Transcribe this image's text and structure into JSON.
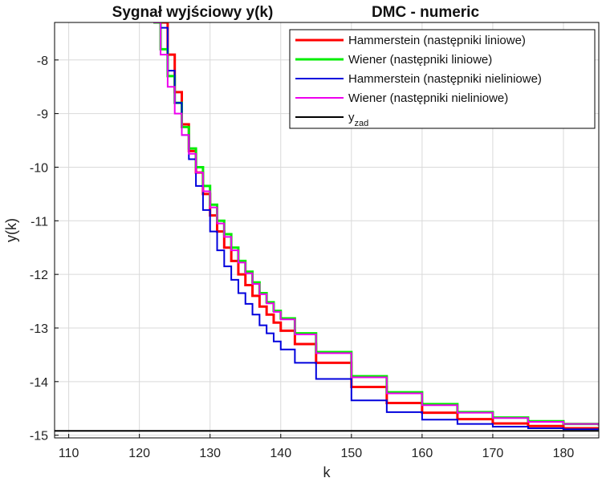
{
  "chart_data": {
    "type": "line",
    "title_left": "Sygnał wyjściowy y(k)",
    "title_right": "DMC - numeric",
    "xlabel": "k",
    "ylabel": "y(k)",
    "xlim": [
      108,
      185
    ],
    "ylim": [
      -15.05,
      -7.3
    ],
    "xticks": [
      110,
      120,
      130,
      140,
      150,
      160,
      170,
      180
    ],
    "yticks": [
      -8,
      -9,
      -10,
      -11,
      -12,
      -13,
      -14,
      -15
    ],
    "xtick_labels": [
      "110",
      "120",
      "130",
      "140",
      "150",
      "160",
      "170",
      "180"
    ],
    "ytick_labels": [
      "-8",
      "-9",
      "-10",
      "-11",
      "-12",
      "-13",
      "-14",
      "-15"
    ],
    "grid": true,
    "legend_position": "top-right",
    "series": [
      {
        "name": "Hammerstein (następniki liniowe)",
        "color": "#ff0000",
        "width": 3,
        "step": true,
        "x": [
          122,
          124,
          125,
          126,
          127,
          128,
          129,
          130,
          131,
          132,
          133,
          134,
          135,
          136,
          137,
          138,
          139,
          140,
          142,
          145,
          150,
          155,
          160,
          165,
          170,
          175,
          180,
          185
        ],
        "y": [
          -7.3,
          -7.9,
          -8.6,
          -9.2,
          -9.7,
          -10.1,
          -10.5,
          -10.9,
          -11.2,
          -11.5,
          -11.75,
          -12.0,
          -12.2,
          -12.4,
          -12.6,
          -12.75,
          -12.9,
          -13.05,
          -13.3,
          -13.65,
          -14.1,
          -14.4,
          -14.58,
          -14.7,
          -14.78,
          -14.83,
          -14.87,
          -14.9
        ]
      },
      {
        "name": "Wiener (następniki liniowe)",
        "color": "#00ee00",
        "width": 3,
        "step": true,
        "x": [
          122,
          123,
          124,
          125,
          126,
          127,
          128,
          129,
          130,
          131,
          132,
          133,
          134,
          135,
          136,
          137,
          138,
          139,
          140,
          142,
          145,
          150,
          155,
          160,
          165,
          170,
          175,
          180,
          185
        ],
        "y": [
          -7.3,
          -7.8,
          -8.3,
          -8.8,
          -9.25,
          -9.65,
          -10.0,
          -10.35,
          -10.7,
          -11.0,
          -11.25,
          -11.5,
          -11.75,
          -11.95,
          -12.15,
          -12.35,
          -12.52,
          -12.68,
          -12.82,
          -13.1,
          -13.45,
          -13.9,
          -14.2,
          -14.42,
          -14.57,
          -14.67,
          -14.74,
          -14.79,
          -14.82
        ]
      },
      {
        "name": "Hammerstein (następniki nieliniowe)",
        "color": "#0000dd",
        "width": 2,
        "step": true,
        "x": [
          122,
          123,
          124,
          125,
          126,
          127,
          128,
          129,
          130,
          131,
          132,
          133,
          134,
          135,
          136,
          137,
          138,
          139,
          140,
          142,
          145,
          150,
          155,
          160,
          165,
          170,
          175,
          180,
          185
        ],
        "y": [
          -7.3,
          -7.4,
          -8.2,
          -8.8,
          -9.4,
          -9.85,
          -10.35,
          -10.8,
          -11.2,
          -11.55,
          -11.85,
          -12.1,
          -12.35,
          -12.55,
          -12.75,
          -12.95,
          -13.1,
          -13.25,
          -13.4,
          -13.65,
          -13.95,
          -14.35,
          -14.57,
          -14.71,
          -14.79,
          -14.84,
          -14.87,
          -14.89,
          -14.9
        ]
      },
      {
        "name": "Wiener (następniki nieliniowe)",
        "color": "#ee00ee",
        "width": 2,
        "step": true,
        "x": [
          122,
          123,
          124,
          125,
          126,
          127,
          128,
          129,
          130,
          131,
          132,
          133,
          134,
          135,
          136,
          137,
          138,
          139,
          140,
          142,
          145,
          150,
          155,
          160,
          165,
          170,
          175,
          180,
          185
        ],
        "y": [
          -7.3,
          -7.9,
          -8.5,
          -9.0,
          -9.4,
          -9.75,
          -10.1,
          -10.45,
          -10.75,
          -11.05,
          -11.3,
          -11.55,
          -11.78,
          -11.98,
          -12.18,
          -12.37,
          -12.54,
          -12.7,
          -12.84,
          -13.12,
          -13.47,
          -13.92,
          -14.22,
          -14.44,
          -14.58,
          -14.68,
          -14.75,
          -14.79,
          -14.82
        ]
      },
      {
        "name": "y",
        "name_sub": "zad",
        "color": "#000000",
        "width": 2,
        "step": false,
        "x": [
          108,
          185
        ],
        "y": [
          -14.92,
          -14.92
        ]
      }
    ]
  }
}
